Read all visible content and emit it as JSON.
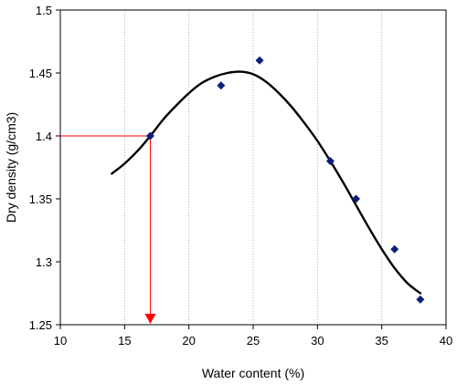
{
  "chart_data": {
    "type": "scatter",
    "title": "",
    "xlabel": "Water content (%)",
    "ylabel": "Dry density (g/cm3)",
    "xlim": [
      10,
      40
    ],
    "ylim": [
      1.25,
      1.5
    ],
    "xticks": [
      10,
      15,
      20,
      25,
      30,
      35,
      40
    ],
    "yticks": [
      1.25,
      1.3,
      1.35,
      1.4,
      1.45,
      1.5
    ],
    "ytick_labels": [
      "1.25",
      "1.3",
      "1.35",
      "1.4",
      "1.45",
      "1.5"
    ],
    "grid": {
      "vertical": true,
      "horizontal": false,
      "style": "dotted"
    },
    "legend": "none",
    "points": {
      "marker": "diamond",
      "color": "#0a1f7a",
      "x": [
        17,
        22.5,
        25.5,
        31,
        33,
        36,
        38
      ],
      "y": [
        1.4,
        1.44,
        1.46,
        1.38,
        1.35,
        1.31,
        1.27
      ]
    },
    "fit_curve": {
      "color": "#000000",
      "x": [
        14,
        15,
        16,
        17,
        18,
        19,
        20,
        21,
        22,
        23,
        24,
        25,
        26,
        27,
        28,
        29,
        30,
        31,
        32,
        33,
        34,
        35,
        36,
        37,
        38
      ],
      "y": [
        1.37,
        1.378,
        1.388,
        1.4,
        1.413,
        1.424,
        1.434,
        1.442,
        1.447,
        1.45,
        1.451,
        1.449,
        1.443,
        1.434,
        1.423,
        1.41,
        1.396,
        1.38,
        1.363,
        1.345,
        1.327,
        1.31,
        1.295,
        1.283,
        1.275
      ]
    },
    "annotation": {
      "color": "#ff0000",
      "x": 17,
      "y": 1.4
    }
  }
}
